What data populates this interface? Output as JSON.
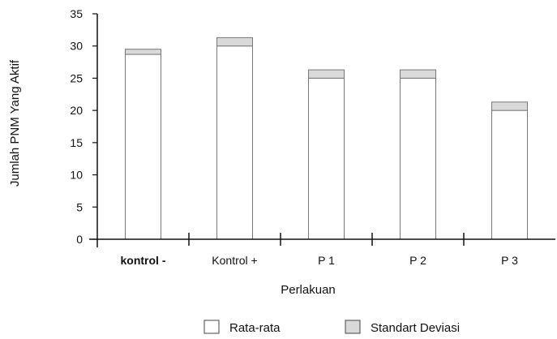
{
  "chart_data": {
    "type": "bar",
    "xlabel": "Perlakuan",
    "ylabel": "Jumlah PNM Yang Aktif",
    "ylim": [
      0,
      35
    ],
    "yticks": [
      0,
      5,
      10,
      15,
      20,
      25,
      30,
      35
    ],
    "categories": [
      "kontrol -",
      "Kontrol +",
      "P 1",
      "P 2",
      "P 3"
    ],
    "series": [
      {
        "name": "Rata-rata",
        "values": [
          28.7,
          30.0,
          25.0,
          25.0,
          20.0
        ],
        "color": "#ffffff"
      },
      {
        "name": "Standart Deviasi",
        "values": [
          0.8,
          1.3,
          1.3,
          1.3,
          1.3
        ],
        "color": "#d9d9d9"
      }
    ],
    "stacked": true,
    "legend": "bottom",
    "grid": false
  }
}
